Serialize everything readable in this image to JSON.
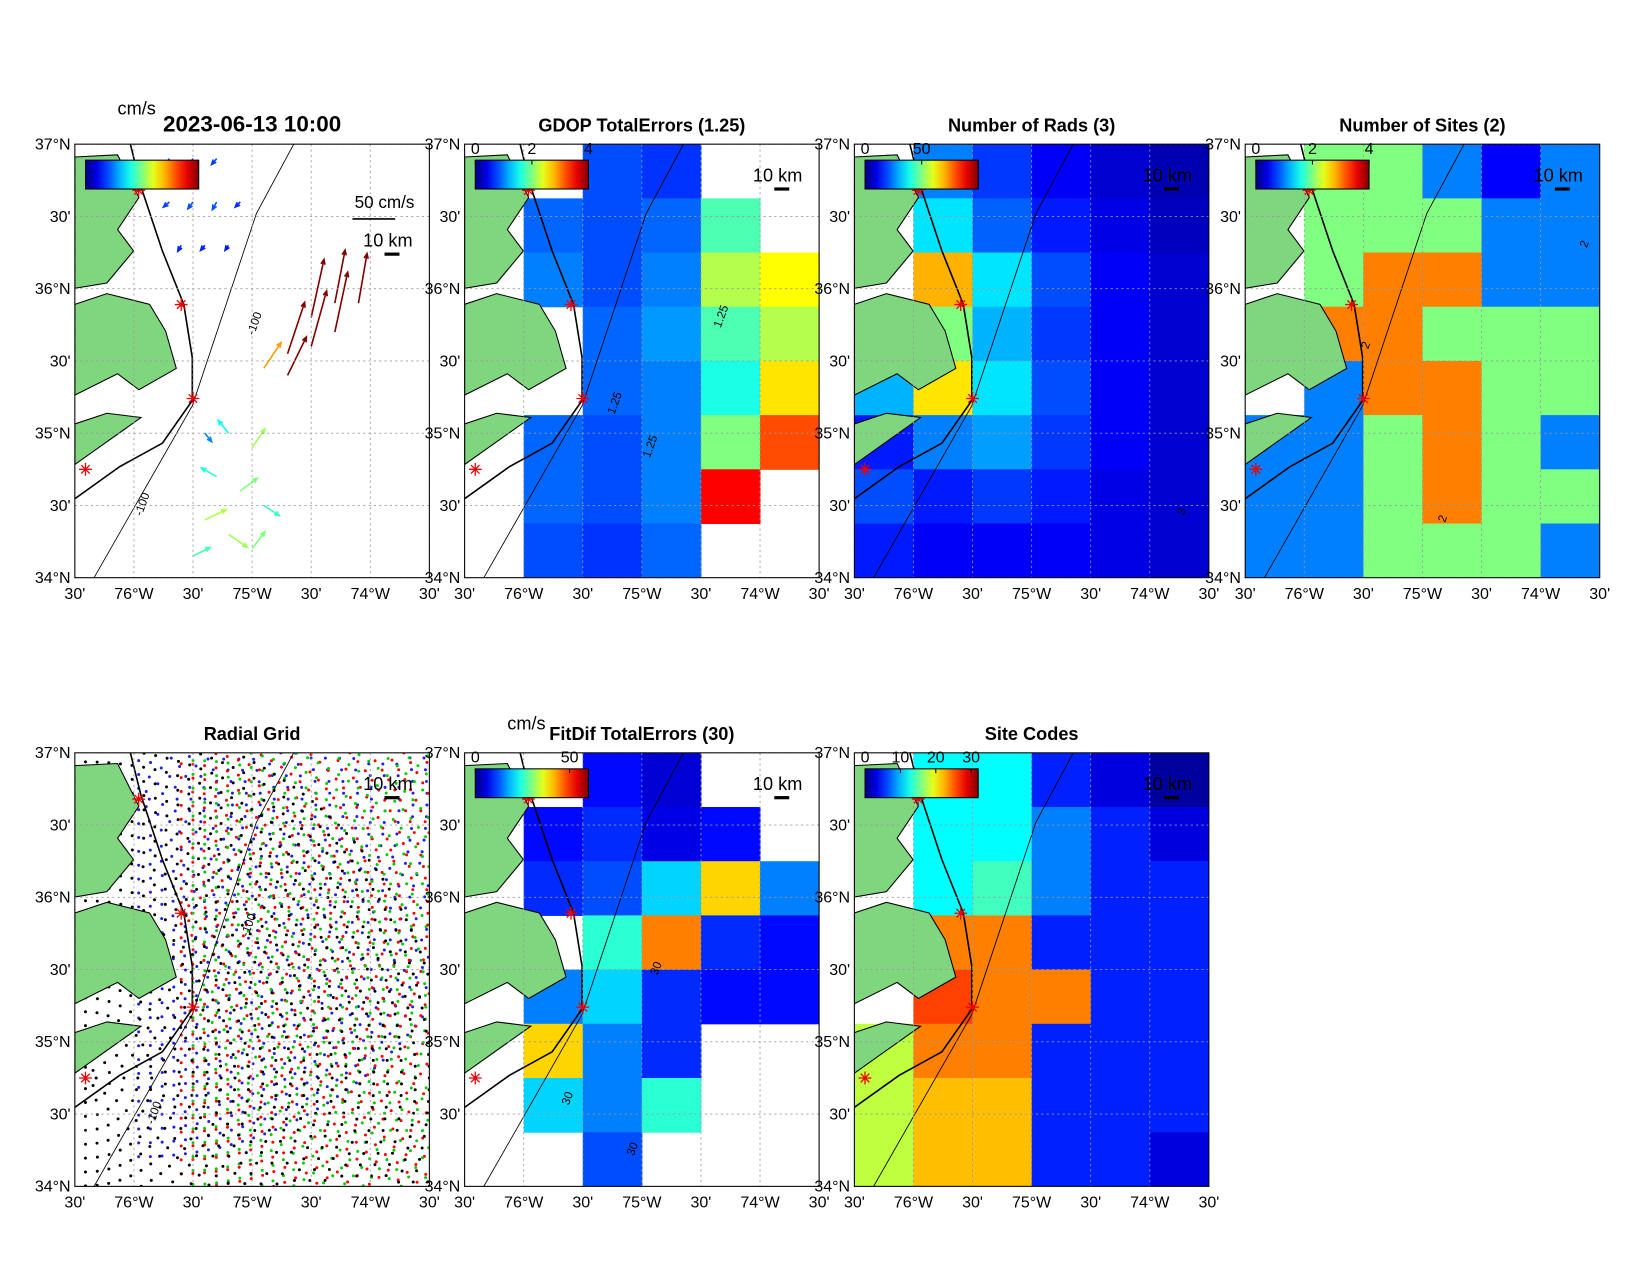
{
  "xlim": [
    -76.5,
    -73.5
  ],
  "ylim": [
    34,
    37
  ],
  "lat_ticks": [
    {
      "value": 37,
      "label": "37°N"
    },
    {
      "value": 36.5,
      "label": "30'"
    },
    {
      "value": 36,
      "label": "36°N"
    },
    {
      "value": 35.5,
      "label": "30'"
    },
    {
      "value": 35,
      "label": "35°N"
    },
    {
      "value": 34.5,
      "label": "30'"
    },
    {
      "value": 34,
      "label": "34°N"
    }
  ],
  "lon_ticks": [
    {
      "value": -76.5,
      "label": "30'"
    },
    {
      "value": -76,
      "label": "76°W"
    },
    {
      "value": -75.5,
      "label": "30'"
    },
    {
      "value": -75,
      "label": "75°W"
    },
    {
      "value": -74.5,
      "label": "30'"
    },
    {
      "value": -74,
      "label": "74°W"
    },
    {
      "value": -73.5,
      "label": "30'"
    }
  ],
  "sites": [
    {
      "lon": -75.96,
      "lat": 36.68,
      "color": "#1f1fe0"
    },
    {
      "lon": -75.6,
      "lat": 35.89,
      "color": "#ff0000"
    },
    {
      "lon": -75.5,
      "lat": 35.24,
      "color": "#00cc00"
    },
    {
      "lon": -76.41,
      "lat": 34.75,
      "color": "#000000"
    }
  ],
  "panels": [
    {
      "type": "vectors",
      "title": "2023-06-13 10:00",
      "cbar_label": "cm/s",
      "ref_label": "50 cm/s",
      "ref_speed": 50,
      "scale_label": "10 km",
      "clim": [
        0,
        50
      ],
      "contour_labels": [
        {
          "lon": -75.9,
          "lat": 34.5,
          "label": "-100"
        },
        {
          "lon": -74.95,
          "lat": 35.75,
          "label": "-100"
        }
      ],
      "vectors": [
        {
          "lon": -75.7,
          "lat": 36.9,
          "u": -6,
          "v": -8
        },
        {
          "lon": -75.5,
          "lat": 36.9,
          "u": -5,
          "v": -8
        },
        {
          "lon": -75.3,
          "lat": 36.9,
          "u": -6,
          "v": -7
        },
        {
          "lon": -75.7,
          "lat": 36.6,
          "u": -7,
          "v": -6
        },
        {
          "lon": -75.5,
          "lat": 36.6,
          "u": -6,
          "v": -8
        },
        {
          "lon": -75.3,
          "lat": 36.6,
          "u": -5,
          "v": -9
        },
        {
          "lon": -75.1,
          "lat": 36.6,
          "u": -6,
          "v": -6
        },
        {
          "lon": -75.6,
          "lat": 36.3,
          "u": -4,
          "v": -7
        },
        {
          "lon": -75.4,
          "lat": 36.3,
          "u": -5,
          "v": -6
        },
        {
          "lon": -75.2,
          "lat": 36.3,
          "u": -4,
          "v": -6
        },
        {
          "lon": -74.7,
          "lat": 35.55,
          "u": 20,
          "v": 60
        },
        {
          "lon": -74.5,
          "lat": 35.6,
          "u": 18,
          "v": 65
        },
        {
          "lon": -74.3,
          "lat": 35.7,
          "u": 15,
          "v": 70
        },
        {
          "lon": -74.5,
          "lat": 35.8,
          "u": 15,
          "v": 68
        },
        {
          "lon": -74.3,
          "lat": 35.9,
          "u": 12,
          "v": 62
        },
        {
          "lon": -74.1,
          "lat": 35.9,
          "u": 10,
          "v": 58
        },
        {
          "lon": -74.7,
          "lat": 35.4,
          "u": 22,
          "v": 45
        },
        {
          "lon": -74.9,
          "lat": 35.45,
          "u": 20,
          "v": 30
        },
        {
          "lon": -75.4,
          "lat": 35.0,
          "u": 8,
          "v": -10
        },
        {
          "lon": -75.2,
          "lat": 35.0,
          "u": -12,
          "v": 15
        },
        {
          "lon": -75.0,
          "lat": 34.9,
          "u": 15,
          "v": 22
        },
        {
          "lon": -75.3,
          "lat": 34.7,
          "u": -18,
          "v": 10
        },
        {
          "lon": -75.1,
          "lat": 34.6,
          "u": 20,
          "v": 15
        },
        {
          "lon": -74.9,
          "lat": 34.5,
          "u": 18,
          "v": -12
        },
        {
          "lon": -75.4,
          "lat": 34.4,
          "u": 25,
          "v": 12
        },
        {
          "lon": -75.2,
          "lat": 34.3,
          "u": 22,
          "v": -15
        },
        {
          "lon": -75.0,
          "lat": 34.2,
          "u": 15,
          "v": 20
        },
        {
          "lon": -75.5,
          "lat": 34.15,
          "u": 20,
          "v": 10
        }
      ]
    },
    {
      "type": "raster",
      "title": "GDOP TotalErrors (1.25)",
      "scale_label": "10 km",
      "clim": [
        0,
        4
      ],
      "cticks": [
        0,
        2,
        4
      ],
      "contour_labels": [
        {
          "lon": -74.3,
          "lat": 35.8,
          "label": "1.25"
        },
        {
          "lon": -75.2,
          "lat": 35.2,
          "label": "1.25"
        },
        {
          "lon": -74.9,
          "lat": 34.9,
          "label": "1.25"
        }
      ],
      "cells": [
        [
          null,
          null,
          0.8,
          0.7,
          null,
          null
        ],
        [
          null,
          0.9,
          0.8,
          0.9,
          1.8,
          null
        ],
        [
          null,
          1,
          0.8,
          1.0,
          2.2,
          2.5
        ],
        [
          null,
          null,
          0.9,
          1.1,
          1.8,
          2.2
        ],
        [
          null,
          null,
          0.9,
          1.0,
          1.6,
          2.6
        ],
        [
          null,
          0.9,
          0.8,
          1.0,
          2.0,
          3.2
        ],
        [
          null,
          0.9,
          0.8,
          1.0,
          3.5,
          null
        ],
        [
          null,
          0.8,
          0.7,
          0.9,
          null,
          null
        ]
      ]
    },
    {
      "type": "raster",
      "title": "Number of Rads (3)",
      "scale_label": "10 km",
      "clim": [
        0,
        100
      ],
      "cticks": [
        0,
        50
      ],
      "contour_labels": [
        {
          "lon": -73.7,
          "lat": 34.45,
          "label": "3"
        }
      ],
      "cells": [
        [
          null,
          25,
          18,
          12,
          8,
          5
        ],
        [
          null,
          35,
          22,
          15,
          10,
          6
        ],
        [
          null,
          70,
          35,
          20,
          12,
          8
        ],
        [
          null,
          50,
          30,
          18,
          12,
          8
        ],
        [
          30,
          65,
          35,
          20,
          12,
          8
        ],
        [
          15,
          25,
          28,
          18,
          12,
          8
        ],
        [
          20,
          15,
          18,
          15,
          10,
          8
        ],
        [
          15,
          12,
          12,
          12,
          10,
          8
        ]
      ]
    },
    {
      "type": "raster",
      "title": "Number of Sites (2)",
      "scale_label": "10 km",
      "clim": [
        0,
        4
      ],
      "cticks": [
        0,
        2,
        4
      ],
      "contour_labels": [
        {
          "lon": -73.6,
          "lat": 36.3,
          "label": "2"
        },
        {
          "lon": -75.45,
          "lat": 35.6,
          "label": "2"
        },
        {
          "lon": -74.8,
          "lat": 34.4,
          "label": "2"
        }
      ],
      "cells": [
        [
          null,
          2,
          2,
          1,
          0.5,
          1
        ],
        [
          null,
          2,
          2,
          2,
          1,
          1
        ],
        [
          null,
          2,
          3,
          3,
          1,
          1
        ],
        [
          null,
          3,
          3,
          2,
          2,
          2
        ],
        [
          null,
          1,
          3,
          3,
          2,
          2
        ],
        [
          1,
          1,
          2,
          3,
          2,
          1
        ],
        [
          1,
          1,
          2,
          3,
          2,
          2
        ],
        [
          1,
          1,
          2,
          2,
          2,
          1
        ]
      ]
    },
    {
      "type": "radial",
      "title": "Radial Grid",
      "scale_label": "10 km",
      "contour_labels": [
        {
          "lon": -75.8,
          "lat": 34.5,
          "label": "-100"
        },
        {
          "lon": -75.0,
          "lat": 35.8,
          "label": "-100"
        }
      ]
    },
    {
      "type": "raster",
      "title": "FitDif TotalErrors (30)",
      "cbar_label": "cm/s",
      "scale_label": "10 km",
      "clim": [
        0,
        60
      ],
      "cticks": [
        0,
        50
      ],
      "contour_labels": [
        {
          "lon": -74.85,
          "lat": 35.5,
          "label": "30"
        },
        {
          "lon": -75.6,
          "lat": 34.6,
          "label": "30"
        },
        {
          "lon": -75.05,
          "lat": 34.25,
          "label": "30"
        }
      ],
      "cells": [
        [
          null,
          null,
          8,
          5,
          null,
          null
        ],
        [
          null,
          8,
          10,
          6,
          8,
          null
        ],
        [
          null,
          10,
          12,
          20,
          40,
          15
        ],
        [
          null,
          null,
          25,
          45,
          10,
          8
        ],
        [
          null,
          15,
          20,
          10,
          8,
          8
        ],
        [
          null,
          40,
          15,
          10,
          null,
          null
        ],
        [
          null,
          20,
          15,
          25,
          null,
          null
        ],
        [
          null,
          null,
          12,
          null,
          null,
          null
        ]
      ]
    },
    {
      "type": "raster",
      "title": "Site Codes",
      "scale_label": "10 km",
      "clim": [
        0,
        32
      ],
      "cticks": [
        0,
        10,
        20,
        30
      ],
      "cells": [
        [
          null,
          12,
          12,
          5,
          3,
          1
        ],
        [
          null,
          12,
          12,
          8,
          5,
          3
        ],
        [
          null,
          12,
          14,
          8,
          5,
          5
        ],
        [
          null,
          24,
          24,
          5,
          5,
          5
        ],
        [
          null,
          26,
          24,
          24,
          5,
          5
        ],
        [
          18,
          24,
          24,
          5,
          5,
          5
        ],
        [
          18,
          22,
          22,
          5,
          5,
          5
        ],
        [
          18,
          22,
          22,
          5,
          5,
          3
        ]
      ]
    }
  ]
}
